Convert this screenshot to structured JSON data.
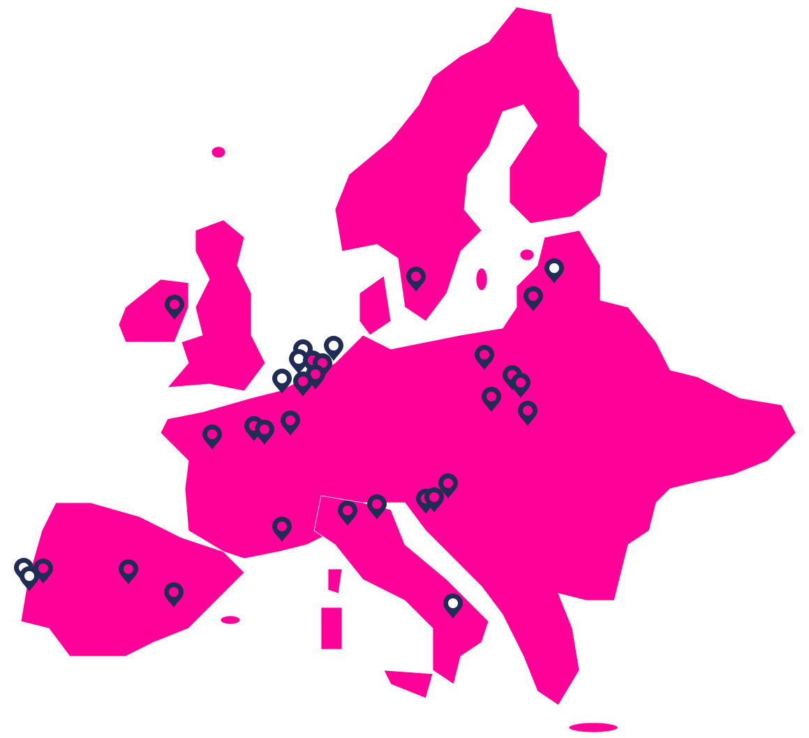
{
  "map": {
    "land_color": "#ff0099",
    "pin_color": "#1f2d55",
    "pin_icon": "map-pin-icon",
    "pins": [
      {
        "region": "ireland",
        "center": "land"
      },
      {
        "region": "sweden",
        "center": "land"
      },
      {
        "region": "latvia",
        "center": "white"
      },
      {
        "region": "lithuania",
        "center": "land"
      },
      {
        "region": "benelux",
        "center": "white"
      },
      {
        "region": "benelux",
        "center": "white"
      },
      {
        "region": "benelux",
        "center": "white"
      },
      {
        "region": "benelux",
        "center": "land"
      },
      {
        "region": "benelux",
        "center": "land"
      },
      {
        "region": "benelux",
        "center": "land"
      },
      {
        "region": "benelux",
        "center": "land"
      },
      {
        "region": "benelux",
        "center": "white"
      },
      {
        "region": "france-north",
        "center": "land"
      },
      {
        "region": "france-north",
        "center": "land"
      },
      {
        "region": "france-north",
        "center": "land"
      },
      {
        "region": "france-west",
        "center": "land"
      },
      {
        "region": "poland",
        "center": "land"
      },
      {
        "region": "poland",
        "center": "land"
      },
      {
        "region": "poland",
        "center": "land"
      },
      {
        "region": "poland",
        "center": "land"
      },
      {
        "region": "poland",
        "center": "land"
      },
      {
        "region": "hungary",
        "center": "land"
      },
      {
        "region": "slovenia",
        "center": "land"
      },
      {
        "region": "slovenia",
        "center": "land"
      },
      {
        "region": "italy-north",
        "center": "land"
      },
      {
        "region": "italy-north",
        "center": "land"
      },
      {
        "region": "france-south",
        "center": "land"
      },
      {
        "region": "portugal",
        "center": "white"
      },
      {
        "region": "portugal",
        "center": "white"
      },
      {
        "region": "portugal",
        "center": "land"
      },
      {
        "region": "spain-center",
        "center": "land"
      },
      {
        "region": "spain-south",
        "center": "land"
      },
      {
        "region": "italy-south",
        "center": "white"
      }
    ]
  }
}
